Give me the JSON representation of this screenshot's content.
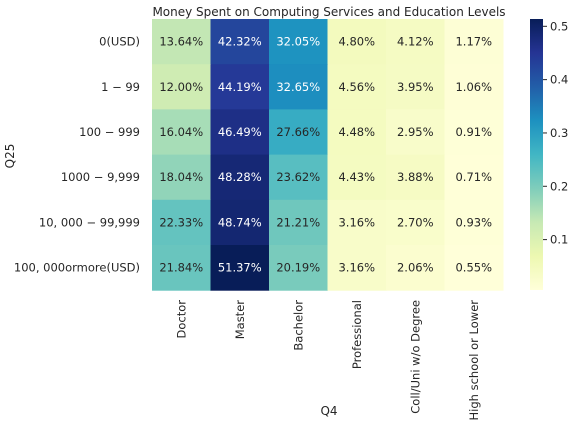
{
  "chart_data": {
    "type": "heatmap",
    "title": "Money Spent on Computing Services and Education Levels",
    "xlabel": "Q4",
    "ylabel": "Q25",
    "x_categories": [
      "Doctor",
      "Master",
      "Bachelor",
      "Professional",
      "Coll/Uni w/o Degree",
      "High school or Lower"
    ],
    "y_categories": [
      "0(USD)",
      "1 − 99",
      "100 − 999",
      "1000 − 9,999",
      "10, 000 − 99,999",
      "100, 000ormore(USD)"
    ],
    "values": [
      [
        13.64,
        42.32,
        32.05,
        4.8,
        4.12,
        1.17
      ],
      [
        12.0,
        44.19,
        32.65,
        4.56,
        3.95,
        1.06
      ],
      [
        16.04,
        46.49,
        27.66,
        4.48,
        2.95,
        0.91
      ],
      [
        18.04,
        48.28,
        23.62,
        4.43,
        3.88,
        0.71
      ],
      [
        22.33,
        48.74,
        21.21,
        3.16,
        2.7,
        0.93
      ],
      [
        21.84,
        51.37,
        20.19,
        3.16,
        2.06,
        0.55
      ]
    ],
    "cell_labels": [
      [
        "13.64%",
        "42.32%",
        "32.05%",
        "4.80%",
        "4.12%",
        "1.17%"
      ],
      [
        "12.00%",
        "44.19%",
        "32.65%",
        "4.56%",
        "3.95%",
        "1.06%"
      ],
      [
        "16.04%",
        "46.49%",
        "27.66%",
        "4.48%",
        "2.95%",
        "0.91%"
      ],
      [
        "18.04%",
        "48.28%",
        "23.62%",
        "4.43%",
        "3.88%",
        "0.71%"
      ],
      [
        "22.33%",
        "48.74%",
        "21.21%",
        "3.16%",
        "2.70%",
        "0.93%"
      ],
      [
        "21.84%",
        "51.37%",
        "20.19%",
        "3.16%",
        "2.06%",
        "0.55%"
      ]
    ],
    "colormap": "YlGnBu",
    "colorbar": {
      "range": [
        0.0055,
        0.5137
      ],
      "ticks": [
        0.1,
        0.2,
        0.3,
        0.4,
        0.5
      ],
      "tick_labels": [
        "0.1",
        "0.2",
        "0.3",
        "0.4",
        "0.5"
      ]
    }
  }
}
